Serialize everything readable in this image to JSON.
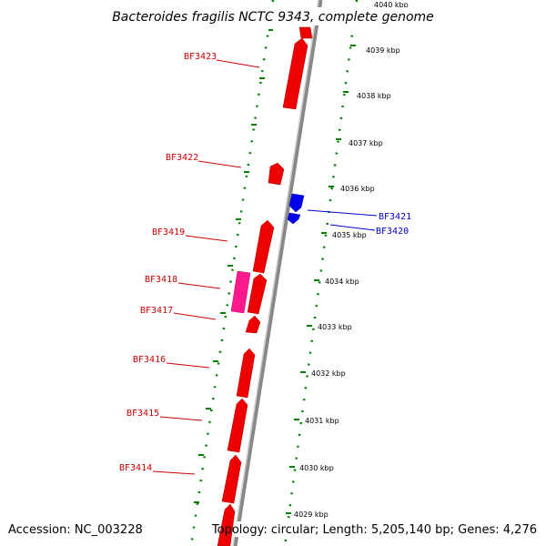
{
  "title": "Bacteroides fragilis NCTC 9343, complete genome",
  "footer": {
    "accession": "Accession: NC_003228",
    "topology": "Topology: circular; Length: 5,205,140 bp; Genes: 4,276"
  },
  "ticks": [
    "4040 kbp",
    "4039 kbp",
    "4038 kbp",
    "4037 kbp",
    "4036 kbp",
    "4035 kbp",
    "4034 kbp",
    "4033 kbp",
    "4032 kbp",
    "4031 kbp",
    "4030 kbp",
    "4029 kbp"
  ],
  "gene_labels": [
    {
      "name": "BF3423",
      "color": "#cc0000"
    },
    {
      "name": "BF3422",
      "color": "#cc0000"
    },
    {
      "name": "BF3421",
      "color": "#0000cc"
    },
    {
      "name": "BF3420",
      "color": "#0000cc"
    },
    {
      "name": "BF3419",
      "color": "#cc0000"
    },
    {
      "name": "BF3418",
      "color": "#cc0000"
    },
    {
      "name": "BF3417",
      "color": "#cc0000"
    },
    {
      "name": "BF3416",
      "color": "#cc0000"
    },
    {
      "name": "BF3415",
      "color": "#cc0000"
    },
    {
      "name": "BF3414",
      "color": "#cc0000"
    }
  ],
  "colors": {
    "forward_gene": "#ff0000",
    "reverse_gene": "#0000ff",
    "pseudo_gene": "#ff1a8c",
    "backbone": "#999999",
    "dotted_track": "#008000"
  }
}
